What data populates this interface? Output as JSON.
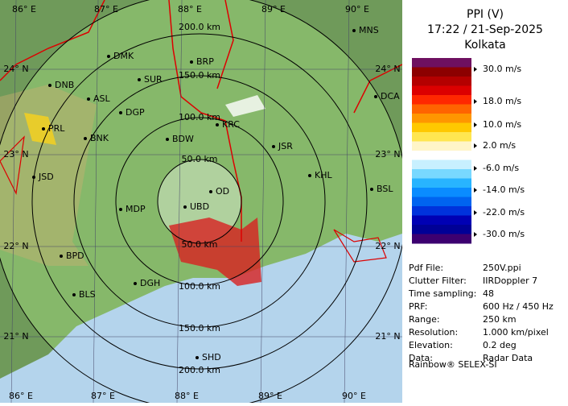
{
  "panel": {
    "title": "PPI (V)",
    "datetime": "17:22 / 21-Sep-2025",
    "location": "Kolkata",
    "legend_labels": [
      "30.0 m/s",
      "18.0 m/s",
      "10.0 m/s",
      "2.0 m/s",
      "-6.0 m/s",
      "-14.0 m/s",
      "-22.0 m/s",
      "-30.0 m/s"
    ],
    "info": [
      [
        "Pdf File:",
        "250V.ppi"
      ],
      [
        "Clutter Filter:",
        "IIRDoppler 7"
      ],
      [
        "Time sampling:",
        "48"
      ],
      [
        "PRF:",
        "600 Hz / 450 Hz"
      ],
      [
        "Range:",
        "250 km"
      ],
      [
        "Resolution:",
        "1.000 km/pixel"
      ],
      [
        "Elevation:",
        "0.2 deg"
      ],
      [
        "Data:",
        "Radar Data"
      ]
    ],
    "footer": "Rainbow® SELEX-SI"
  },
  "map": {
    "lon_labels": [
      "86° E",
      "87° E",
      "88° E",
      "89° E",
      "90° E"
    ],
    "lat_labels": [
      "24° N",
      "23° N",
      "22° N",
      "21° N"
    ],
    "range_labels_north": [
      "200.0 km",
      "150.0 km",
      "100.0 km",
      "50.0 km"
    ],
    "range_labels_south": [
      "50.0 km",
      "100.0 km",
      "150.0 km",
      "200.0 km"
    ],
    "stations": [
      "MNS",
      "DMK",
      "BRP",
      "SUR",
      "DNB",
      "ASL",
      "DGP",
      "DCA",
      "KRC",
      "PRL",
      "BNK",
      "BDW",
      "JSR",
      "KHL",
      "JSD",
      "BSL",
      "OD",
      "UBD",
      "MDP",
      "BPD",
      "DGH",
      "BLS",
      "SHD"
    ]
  }
}
